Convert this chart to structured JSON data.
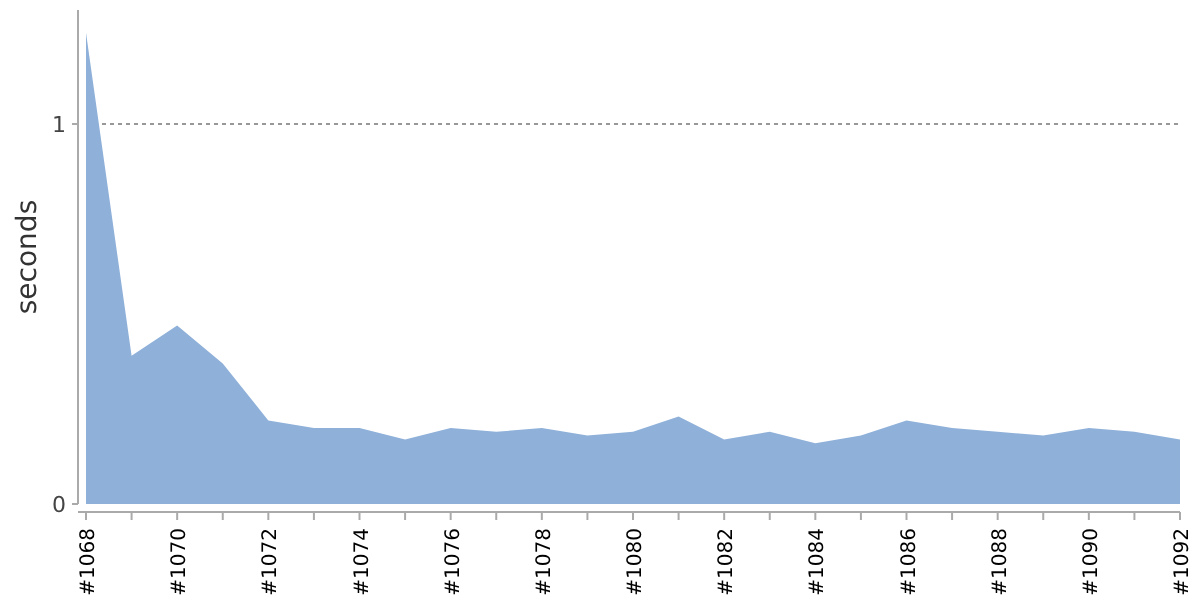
{
  "chart_data": {
    "type": "area",
    "ylabel": "seconds",
    "categories": [
      "#1068",
      null,
      "#1070",
      null,
      "#1072",
      null,
      "#1074",
      null,
      "#1076",
      null,
      "#1078",
      null,
      "#1080",
      null,
      "#1082",
      null,
      "#1084",
      null,
      "#1086",
      null,
      "#1088",
      null,
      "#1090",
      null,
      "#1092"
    ],
    "series": [
      {
        "color": "#8eb0d9",
        "values": [
          1.24,
          0.39,
          0.47,
          0.37,
          0.22,
          0.2,
          0.2,
          0.17,
          0.2,
          0.19,
          0.2,
          0.18,
          0.19,
          0.23,
          0.17,
          0.19,
          0.16,
          0.18,
          0.22,
          0.2,
          0.19,
          0.18,
          0.2,
          0.19,
          0.17
        ]
      }
    ],
    "ylim": [
      0,
      1.3
    ],
    "yticks": [
      0,
      1
    ],
    "grid": "y",
    "line_style": "dotted"
  }
}
